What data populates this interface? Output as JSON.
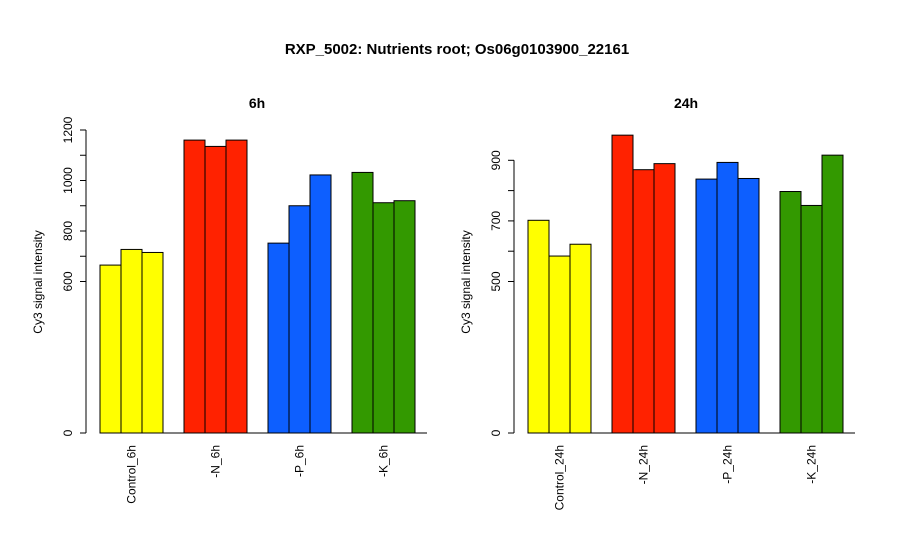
{
  "title": "RXP_5002: Nutrients root; Os06g0103900_22161",
  "colors": {
    "Control": "#ffff00",
    "-N": "#ff2200",
    "-P": "#0d5fff",
    "-K": "#339900"
  },
  "chart_data": [
    {
      "type": "bar",
      "title": "6h",
      "ylabel": "Cy3 signal intensity",
      "xlabel": "",
      "ylim": [
        0,
        1200
      ],
      "yticks": [
        0,
        600,
        800,
        1000,
        1200
      ],
      "axis_break_between": [
        0,
        600
      ],
      "grid": false,
      "categories": [
        "Control_6h",
        "-N_6h",
        "-P_6h",
        "-K_6h"
      ],
      "group_colors": [
        "Control",
        "-N",
        "-P",
        "-K"
      ],
      "values": [
        [
          665,
          727,
          715
        ],
        [
          1160,
          1135,
          1160
        ],
        [
          752,
          900,
          1022
        ],
        [
          1032,
          912,
          920
        ]
      ]
    },
    {
      "type": "bar",
      "title": "24h",
      "ylabel": "Cy3 signal intensity",
      "xlabel": "",
      "ylim": [
        0,
        1000
      ],
      "yticks": [
        0,
        500,
        700,
        900
      ],
      "axis_break_between": [
        0,
        500
      ],
      "grid": false,
      "categories": [
        "Control_24h",
        "-N_24h",
        "-P_24h",
        "-K_24h"
      ],
      "group_colors": [
        "Control",
        "-N",
        "-P",
        "-K"
      ],
      "values": [
        [
          702,
          584,
          623
        ],
        [
          983,
          869,
          889
        ],
        [
          838,
          893,
          840
        ],
        [
          797,
          751,
          917
        ]
      ]
    }
  ]
}
